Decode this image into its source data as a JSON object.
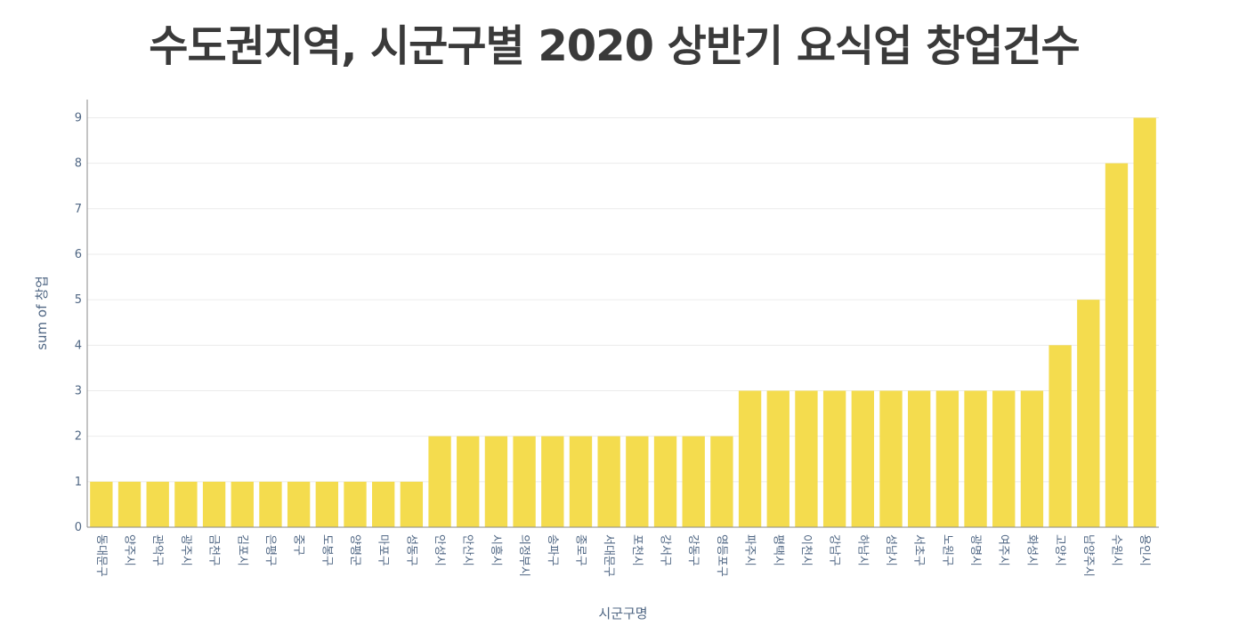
{
  "chart_data": {
    "type": "bar",
    "title": "수도권지역, 시군구별 2020 상반기 요식업 창업건수",
    "xlabel": "시군구명",
    "ylabel": "sum of 창업",
    "ylim": [
      0,
      9.4
    ],
    "yticks": [
      0,
      1,
      2,
      3,
      4,
      5,
      6,
      7,
      8,
      9
    ],
    "grid": true,
    "bar_color": "#f4dc4e",
    "categories": [
      "동대문구",
      "양주시",
      "관악구",
      "광주시",
      "금천구",
      "김포시",
      "은평구",
      "중구",
      "도봉구",
      "양평군",
      "마포구",
      "성동구",
      "안성시",
      "안산시",
      "시흥시",
      "의정부시",
      "송파구",
      "종로구",
      "서대문구",
      "포천시",
      "강서구",
      "강동구",
      "영등포구",
      "파주시",
      "평택시",
      "이천시",
      "강남구",
      "하남시",
      "성남시",
      "서초구",
      "노원구",
      "광명시",
      "여주시",
      "화성시",
      "고양시",
      "남양주시",
      "수원시",
      "용인시"
    ],
    "values": [
      1,
      1,
      1,
      1,
      1,
      1,
      1,
      1,
      1,
      1,
      1,
      1,
      2,
      2,
      2,
      2,
      2,
      2,
      2,
      2,
      2,
      2,
      2,
      3,
      3,
      3,
      3,
      3,
      3,
      3,
      3,
      3,
      3,
      3,
      4,
      5,
      8,
      9
    ]
  }
}
